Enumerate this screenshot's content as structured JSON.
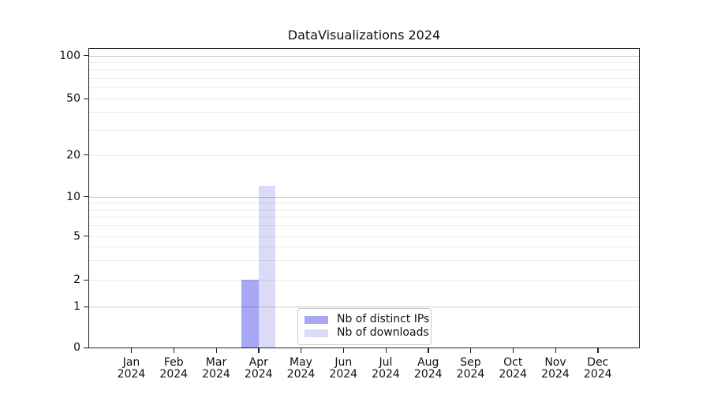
{
  "chart_data": {
    "type": "bar",
    "title": "DataVisualizations 2024",
    "categories": [
      {
        "month": "Jan",
        "year": "2024"
      },
      {
        "month": "Feb",
        "year": "2024"
      },
      {
        "month": "Mar",
        "year": "2024"
      },
      {
        "month": "Apr",
        "year": "2024"
      },
      {
        "month": "May",
        "year": "2024"
      },
      {
        "month": "Jun",
        "year": "2024"
      },
      {
        "month": "Jul",
        "year": "2024"
      },
      {
        "month": "Aug",
        "year": "2024"
      },
      {
        "month": "Sep",
        "year": "2024"
      },
      {
        "month": "Oct",
        "year": "2024"
      },
      {
        "month": "Nov",
        "year": "2024"
      },
      {
        "month": "Dec",
        "year": "2024"
      }
    ],
    "series": [
      {
        "name": "Nb of distinct IPs",
        "color": "#a7a8f5",
        "values": [
          0,
          0,
          0,
          2,
          0,
          0,
          0,
          0,
          0,
          0,
          0,
          0
        ]
      },
      {
        "name": "Nb of downloads",
        "color": "#dbdbf8",
        "values": [
          0,
          0,
          0,
          12,
          0,
          0,
          0,
          0,
          0,
          0,
          0,
          0
        ]
      }
    ],
    "y_axis": {
      "scale": "log-like (log10(1+v)), 0 at baseline",
      "tick_labels": [
        "0",
        "1",
        "2",
        "5",
        "10",
        "20",
        "50",
        "100"
      ],
      "tick_values": [
        0,
        1,
        2,
        5,
        10,
        20,
        50,
        100
      ],
      "major_grid_values": [
        1,
        10,
        100
      ],
      "minor_grid_values": [
        2,
        3,
        4,
        5,
        6,
        7,
        8,
        9,
        20,
        30,
        40,
        50,
        60,
        70,
        80,
        90
      ],
      "ylim": [
        0,
        112
      ]
    },
    "x_axis": {
      "ylabel": "",
      "xlabel": ""
    },
    "legend": {
      "position": "lower center (inside axes)"
    },
    "grid": "horizontal, major+minor"
  },
  "colors": {
    "background": "#ffffff",
    "spine": "#1f1f1f",
    "text": "#111111",
    "major_grid": "#cccccc",
    "minor_grid": "#ececec",
    "bar_distinct_ips": "#a7a8f5",
    "bar_downloads": "#dbdbf8"
  }
}
